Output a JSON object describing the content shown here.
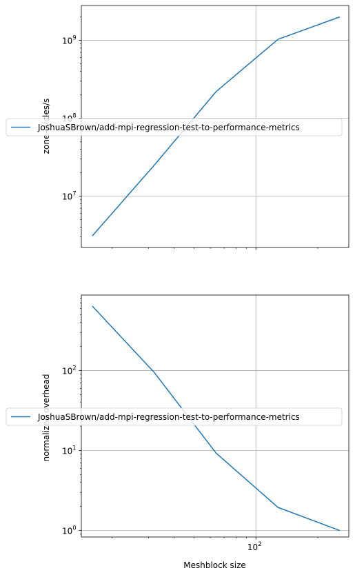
{
  "chart_data": [
    {
      "type": "line",
      "xscale": "log",
      "yscale": "log",
      "xlabel": "",
      "ylabel": "zone-cycles/s",
      "grid": true,
      "legend": "center-left",
      "x_ticks": [
        {
          "value": 100,
          "base": "10",
          "exp": "2",
          "label": "10^2"
        }
      ],
      "y_ticks": [
        {
          "value": 10000000,
          "base": "10",
          "exp": "7",
          "label": "10^7"
        },
        {
          "value": 100000000,
          "base": "10",
          "exp": "8",
          "label": "10^8"
        },
        {
          "value": 1000000000,
          "base": "10",
          "exp": "9",
          "label": "10^9"
        }
      ],
      "series": [
        {
          "name": "JoshuaSBrown/add-mpi-regression-test-to-performance-metrics",
          "color": "#1f77b4",
          "x": [
            16,
            32,
            64,
            128,
            256
          ],
          "y": [
            3100000,
            25000000,
            220000000,
            1030000000,
            2000000000
          ]
        }
      ]
    },
    {
      "type": "line",
      "xscale": "log",
      "yscale": "log",
      "xlabel": "Meshblock size",
      "ylabel": "normalized overhead",
      "grid": true,
      "legend": "center-left",
      "x_ticks": [
        {
          "value": 100,
          "base": "10",
          "exp": "2",
          "label": "10^2"
        }
      ],
      "y_ticks": [
        {
          "value": 1,
          "base": "10",
          "exp": "0",
          "label": "10^0"
        },
        {
          "value": 10,
          "base": "10",
          "exp": "1",
          "label": "10^1"
        },
        {
          "value": 100,
          "base": "10",
          "exp": "2",
          "label": "10^2"
        }
      ],
      "series": [
        {
          "name": "JoshuaSBrown/add-mpi-regression-test-to-performance-metrics",
          "color": "#1f77b4",
          "x": [
            16,
            32,
            64,
            128,
            256
          ],
          "y": [
            640,
            95,
            9.3,
            1.95,
            1.0
          ]
        }
      ]
    }
  ]
}
